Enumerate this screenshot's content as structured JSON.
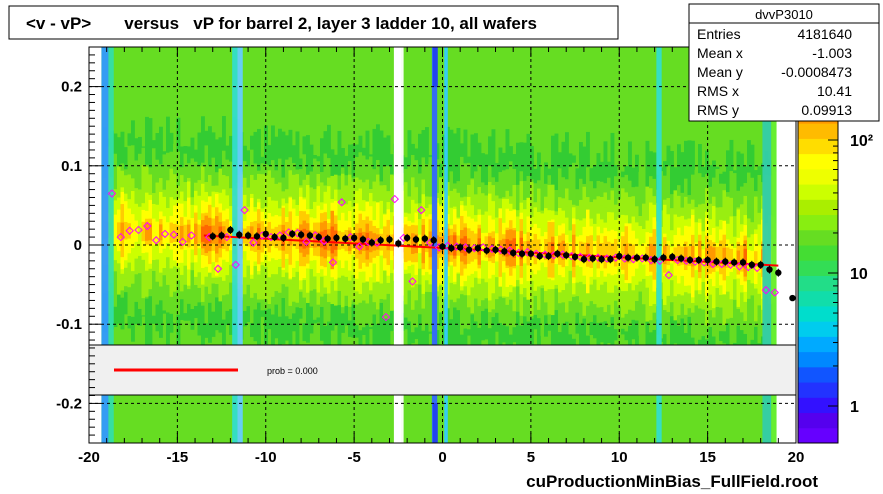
{
  "chart_data": {
    "type": "heatmap",
    "title": "<v - vP>       versus   vP for barrel 2, layer 3 ladder 10, all wafers",
    "xlabel": "",
    "ylabel": "",
    "footer": "cuProductionMinBias_FullField.root",
    "xlim": [
      -20,
      20
    ],
    "ylim": [
      -0.25,
      0.25
    ],
    "x_ticks": [
      "-20",
      "-15",
      "-10",
      "-5",
      "0",
      "5",
      "10",
      "15",
      "20"
    ],
    "y_ticks": [
      "0.2",
      "0.1",
      "0",
      "-0.1",
      "-0.2"
    ],
    "y_tick_values": [
      0.2,
      0.1,
      0,
      -0.1,
      -0.2
    ],
    "x_tick_values": [
      -20,
      -15,
      -10,
      -5,
      0,
      5,
      10,
      15,
      20
    ],
    "grid": true,
    "colorbar": {
      "scale": "log",
      "tick_labels": [
        "10²",
        "10",
        "1"
      ],
      "tick_values": [
        100,
        10,
        1
      ]
    },
    "stats_box": {
      "name": "dvvP3010",
      "rows": [
        {
          "label": "Entries",
          "value": "4181640"
        },
        {
          "label": "Mean x",
          "value": "-1.003"
        },
        {
          "label": "Mean y",
          "value": "-0.0008473"
        },
        {
          "label": "RMS x",
          "value": "10.41"
        },
        {
          "label": "RMS y",
          "value": "0.09913"
        }
      ]
    },
    "legend": {
      "fit_label": "prob = 0.000",
      "fit_color": "#ff0000"
    },
    "profile_black": {
      "name": "profile",
      "color": "#000000",
      "x": [
        -13,
        -12.5,
        -12,
        -11.5,
        -11,
        -10.5,
        -10,
        -9.5,
        -9,
        -8.5,
        -8,
        -7.5,
        -7,
        -6.5,
        -6,
        -5.5,
        -5,
        -4.5,
        -4,
        -3.5,
        -3,
        -2.5,
        -2,
        -1.5,
        -1,
        -0.5,
        0,
        0.5,
        1,
        1.5,
        2,
        2.5,
        3,
        3.5,
        4,
        4.5,
        5,
        5.5,
        6,
        6.5,
        7,
        7.5,
        8,
        8.5,
        9,
        9.5,
        10,
        10.5,
        11,
        11.5,
        12,
        12.5,
        13,
        13.5,
        14,
        14.5,
        15,
        15.5,
        16,
        16.5,
        17,
        17.5,
        18,
        18.5,
        19
      ],
      "y": [
        0.011,
        0.012,
        0.019,
        0.013,
        0.012,
        0.011,
        0.014,
        0.01,
        0.009,
        0.014,
        0.013,
        0.012,
        0.01,
        0.008,
        0.009,
        0.008,
        0.009,
        0.007,
        0.003,
        0.006,
        0.007,
        0.002,
        0.009,
        0.007,
        0.008,
        0.006,
        -0.002,
        -0.004,
        -0.003,
        -0.006,
        -0.004,
        -0.007,
        -0.006,
        -0.008,
        -0.01,
        -0.011,
        -0.011,
        -0.014,
        -0.014,
        -0.011,
        -0.013,
        -0.015,
        -0.018,
        -0.017,
        -0.018,
        -0.018,
        -0.014,
        -0.016,
        -0.016,
        -0.016,
        -0.018,
        -0.016,
        -0.015,
        -0.017,
        -0.019,
        -0.019,
        -0.019,
        -0.021,
        -0.021,
        -0.022,
        -0.022,
        -0.025,
        -0.025,
        -0.031,
        -0.035
      ]
    },
    "profile_black_tail": {
      "x": [
        19.8
      ],
      "y": [
        -0.067
      ]
    },
    "profile_magenta": {
      "name": "open markers",
      "color": "#ff00ff",
      "x": [
        -18.7,
        -18.2,
        -17.7,
        -17.2,
        -16.7,
        -16.2,
        -15.7,
        -15.2,
        -14.7,
        -14.2,
        -13.2,
        -12.7,
        -12.2,
        -11.7,
        -11.2,
        -10.7,
        -10.2,
        -9.7,
        -9.2,
        -8.7,
        -8.2,
        -7.7,
        -7.2,
        -6.7,
        -6.2,
        -5.7,
        -5.2,
        -4.7,
        -4.2,
        -3.7,
        -3.2,
        -2.7,
        -2.2,
        -1.7,
        -1.2,
        -0.7,
        -0.2,
        0.3,
        0.8,
        1.3,
        1.8,
        2.3,
        2.8,
        3.3,
        3.8,
        4.3,
        4.8,
        5.3,
        5.8,
        6.3,
        6.8,
        7.3,
        7.8,
        8.3,
        8.8,
        9.3,
        9.8,
        10.3,
        10.8,
        11.3,
        11.8,
        12.3,
        12.8,
        13.3,
        13.8,
        14.3,
        14.8,
        15.3,
        15.8,
        16.3,
        16.8,
        17.3,
        17.8,
        18.3,
        18.8
      ],
      "y": [
        0.065,
        0.01,
        0.018,
        0.019,
        0.024,
        0.006,
        0.014,
        0.013,
        0.004,
        0.012,
        0.01,
        -0.03,
        0.01,
        -0.025,
        0.044,
        0.003,
        0.012,
        0.01,
        0.012,
        0.016,
        0.015,
        0.004,
        0.012,
        0.005,
        -0.022,
        0.054,
        0.01,
        -0.002,
        0.004,
        0.003,
        -0.091,
        0.058,
        0.009,
        -0.046,
        0.044,
        0.003,
        -0.003,
        -0.001,
        -0.002,
        -0.003,
        -0.004,
        -0.003,
        -0.005,
        -0.006,
        -0.007,
        -0.01,
        -0.009,
        -0.011,
        -0.012,
        -0.013,
        -0.012,
        -0.014,
        -0.015,
        -0.016,
        -0.016,
        -0.017,
        -0.016,
        -0.017,
        -0.018,
        -0.017,
        -0.019,
        -0.02,
        -0.038,
        -0.019,
        -0.02,
        -0.021,
        -0.022,
        -0.024,
        -0.024,
        -0.025,
        -0.027,
        -0.028,
        -0.029,
        -0.057,
        -0.06
      ]
    },
    "fit_line": {
      "color": "#ff0000",
      "x": [
        -13.5,
        19
      ],
      "y": [
        0.012,
        -0.026
      ]
    }
  }
}
